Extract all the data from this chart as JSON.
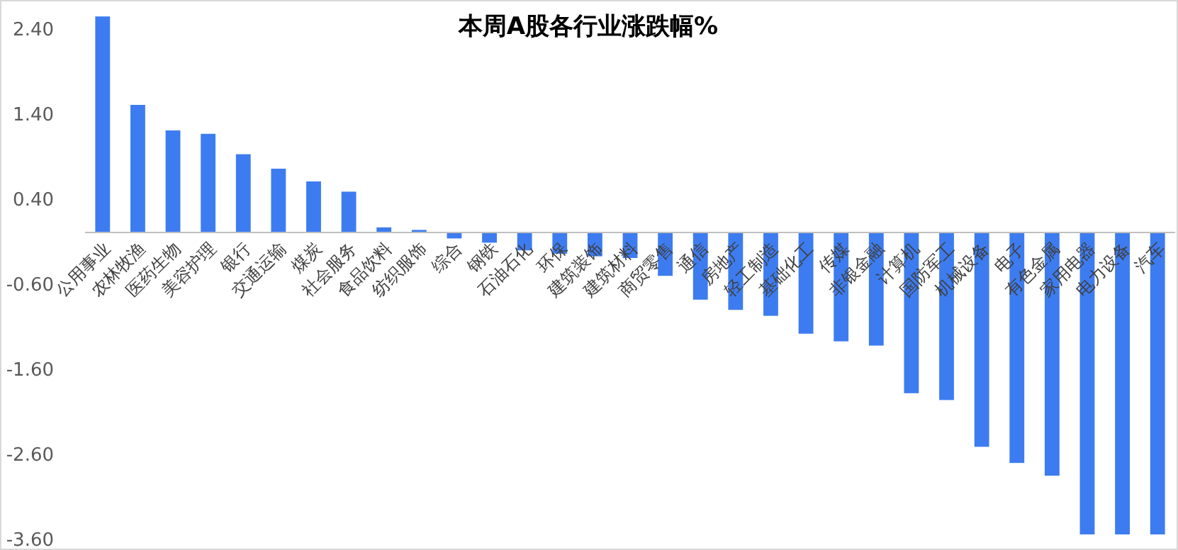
{
  "chart_data": {
    "type": "bar",
    "title": "本周A股各行业涨跌幅%",
    "categories": [
      "公用事业",
      "农林牧渔",
      "医药生物",
      "美容护理",
      "银行",
      "交通运输",
      "煤炭",
      "社会服务",
      "食品饮料",
      "纺织服饰",
      "综合",
      "钢铁",
      "石油石化",
      "环保",
      "建筑装饰",
      "建筑材料",
      "商贸零售",
      "通信",
      "房地产",
      "轻工制造",
      "基础化工",
      "传媒",
      "非银金融",
      "计算机",
      "国防军工",
      "机械设备",
      "电子",
      "有色金属",
      "家用电器",
      "电力设备",
      "汽车"
    ],
    "values": [
      2.54,
      1.5,
      1.2,
      1.16,
      0.92,
      0.75,
      0.6,
      0.48,
      0.06,
      0.03,
      -0.07,
      -0.12,
      -0.21,
      -0.25,
      -0.28,
      -0.3,
      -0.51,
      -0.79,
      -0.91,
      -0.98,
      -1.19,
      -1.28,
      -1.33,
      -1.89,
      -1.97,
      -2.52,
      -2.71,
      -2.86,
      -3.55,
      -3.55,
      -3.55
    ],
    "color": "#3d7cf0",
    "ylim": [
      -3.6,
      2.6
    ],
    "yticks": [
      {
        "value": 2.4,
        "label": "2.40"
      },
      {
        "value": 1.4,
        "label": "1.40"
      },
      {
        "value": 0.4,
        "label": "0.40"
      },
      {
        "value": -0.6,
        "label": "-0.60"
      },
      {
        "value": -1.6,
        "label": "-1.60"
      },
      {
        "value": -2.6,
        "label": "-2.60"
      },
      {
        "value": -3.6,
        "label": "-3.60"
      }
    ]
  }
}
